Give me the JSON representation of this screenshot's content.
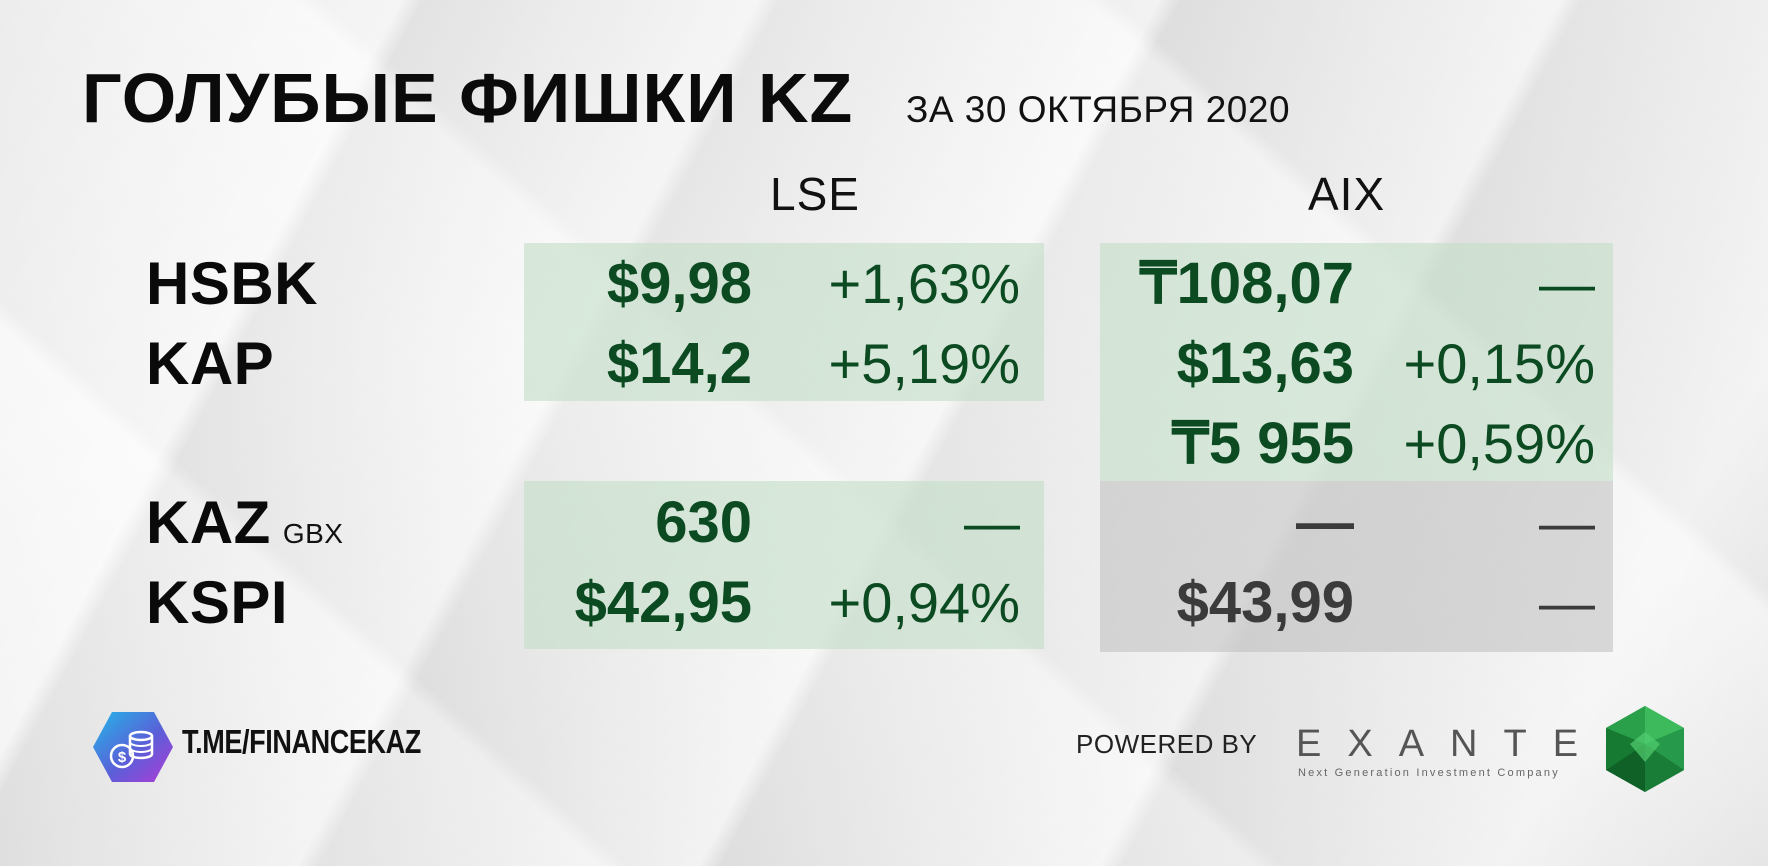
{
  "header": {
    "title": "ГОЛУБЫЕ ФИШКИ KZ",
    "subtitle": "ЗА 30 ОКТЯБРЯ 2020"
  },
  "exchanges": {
    "lse": "LSE",
    "aix": "AIX"
  },
  "rows": [
    {
      "ticker": "HSBK",
      "unit": "",
      "lse_price": "$9,98",
      "lse_change": "+1,63%",
      "aix_price": "₸108,07",
      "aix_change": "—"
    },
    {
      "ticker": "KAP",
      "unit": "",
      "lse_price": "$14,2",
      "lse_change": "+5,19%",
      "aix_price": "$13,63",
      "aix_change": "+0,15%"
    },
    {
      "ticker": "",
      "unit": "",
      "lse_price": "",
      "lse_change": "",
      "aix_price": "₸5 955",
      "aix_change": "+0,59%"
    },
    {
      "ticker": "KAZ",
      "unit": "GBX",
      "lse_price": "630",
      "lse_change": "—",
      "aix_price": "—",
      "aix_change": "—"
    },
    {
      "ticker": "KSPI",
      "unit": "",
      "lse_price": "$42,95",
      "lse_change": "+0,94%",
      "aix_price": "$43,99",
      "aix_change": "—"
    }
  ],
  "footer": {
    "channel": "T.ME/FINANCEKAZ",
    "powered_by": "POWERED BY",
    "brand": "EXANTE",
    "brand_tagline": "Next Generation Investment Company"
  },
  "colors": {
    "green_text": "#0c4a22",
    "green_panel": "#c4dec8",
    "gray_panel": "#bebebe",
    "gray_text": "#3b3b3b"
  },
  "icons": {
    "channel_logo": "coins-hexagon-icon",
    "brand_logo": "emerald-gem-icon"
  }
}
